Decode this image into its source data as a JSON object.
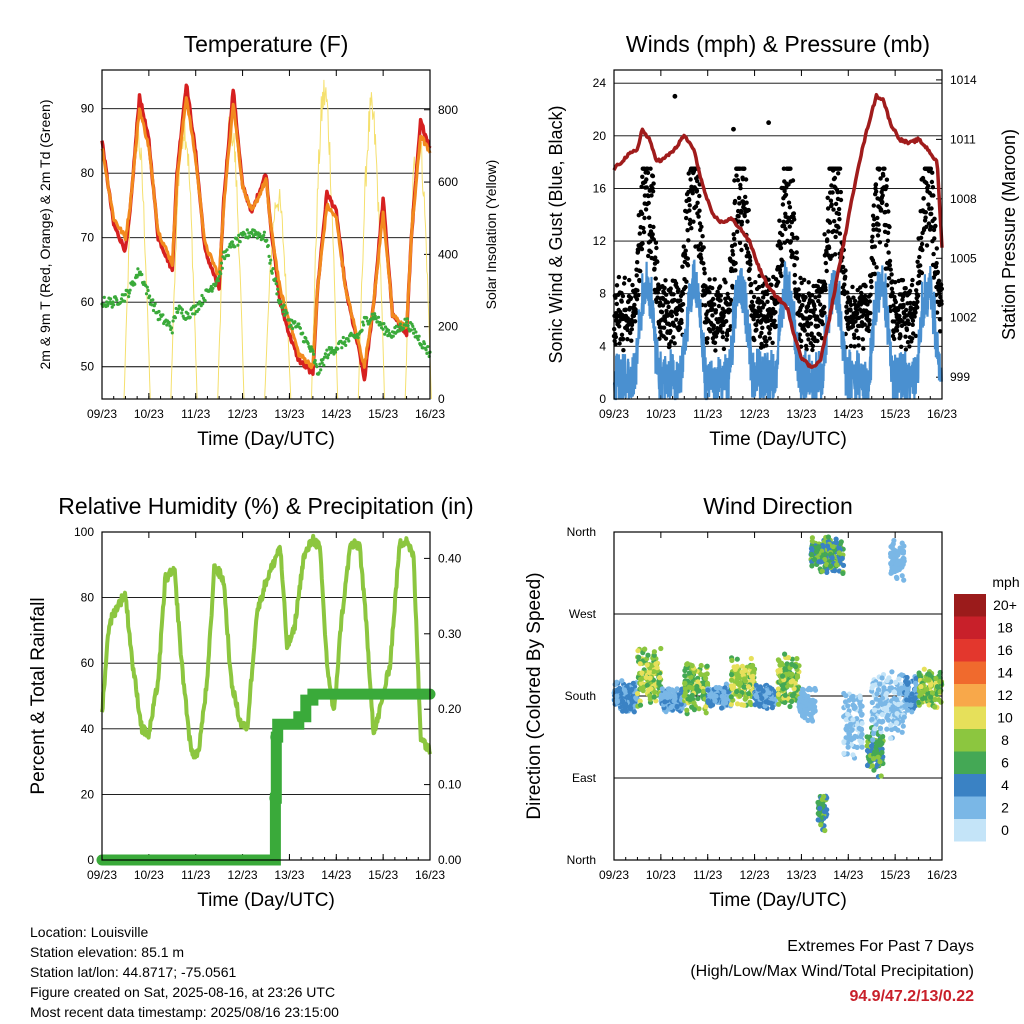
{
  "chart_data": [
    {
      "id": "temp",
      "type": "line",
      "title": "Temperature (F)",
      "xlabel": "Time (Day/UTC)",
      "ylabel": "2m & 9m T (Red, Orange) & 2m Td (Green)",
      "y2label": "Solar Insolation (Yellow)",
      "x_ticks": [
        "09/23",
        "10/23",
        "11/23",
        "12/23",
        "13/23",
        "14/23",
        "15/23",
        "16/23"
      ],
      "ylim": [
        45,
        96
      ],
      "y_ticks": [
        50,
        60,
        70,
        80,
        90
      ],
      "y2lim": [
        0,
        910
      ],
      "y2_ticks": [
        0,
        200,
        400,
        600,
        800
      ],
      "grid": true,
      "x_days": [
        0,
        0.25,
        0.5,
        0.6,
        0.8,
        1.0,
        1.2,
        1.5,
        1.6,
        1.8,
        2.0,
        2.2,
        2.5,
        2.6,
        2.8,
        3.0,
        3.2,
        3.5,
        3.6,
        3.8,
        4.0,
        4.2,
        4.5,
        4.6,
        4.8,
        5.0,
        5.2,
        5.5,
        5.6,
        5.8,
        6.0,
        6.2,
        6.5,
        6.6,
        6.8,
        7.0
      ],
      "series": [
        {
          "name": "2m T",
          "color": "#d62020",
          "values": [
            85,
            72,
            68,
            74,
            92,
            85,
            70,
            65,
            80,
            94,
            83,
            68,
            62,
            76,
            93,
            78,
            74,
            80,
            72,
            60,
            55,
            51,
            49,
            62,
            77,
            74,
            62,
            52,
            48,
            60,
            76,
            58,
            55,
            70,
            88,
            84
          ]
        },
        {
          "name": "9m T",
          "color": "#f28a1e",
          "values": [
            84,
            73,
            70,
            75,
            90,
            84,
            71,
            66,
            79,
            92,
            82,
            69,
            64,
            75,
            91,
            78,
            74,
            79,
            72,
            62,
            57,
            52,
            50,
            62,
            75,
            73,
            62,
            53,
            50,
            60,
            74,
            58,
            56,
            70,
            86,
            83
          ]
        },
        {
          "name": "2m Td",
          "color": "#3aaa3a",
          "values": [
            60,
            60,
            61,
            62,
            65,
            61,
            58,
            56,
            59,
            58,
            59,
            61,
            64,
            67,
            69,
            70,
            71,
            70,
            66,
            60,
            57,
            56,
            52,
            49,
            52,
            53,
            54,
            55,
            57,
            58,
            56,
            55,
            57,
            56,
            54,
            52
          ]
        }
      ],
      "insolation": {
        "name": "Solar Insolation",
        "color": "#f5e06e",
        "peaks": [
          {
            "day": 0.75,
            "v": 790
          },
          {
            "day": 1.75,
            "v": 820
          },
          {
            "day": 2.75,
            "v": 820
          },
          {
            "day": 3.75,
            "v": 600
          },
          {
            "day": 4.75,
            "v": 910
          },
          {
            "day": 5.75,
            "v": 850
          },
          {
            "day": 6.75,
            "v": 780
          }
        ]
      }
    },
    {
      "id": "winds",
      "type": "scatter",
      "title": "Winds (mph) & Pressure (mb)",
      "xlabel": "Time (Day/UTC)",
      "ylabel": "Sonic Wind & Gust (Blue, Black)",
      "y2label": "Station Pressure (Maroon)",
      "x_ticks": [
        "09/23",
        "10/23",
        "11/23",
        "12/23",
        "13/23",
        "14/23",
        "15/23",
        "16/23"
      ],
      "ylim": [
        0,
        25
      ],
      "y_ticks": [
        0,
        4,
        8,
        12,
        16,
        20,
        24
      ],
      "y2lim": [
        997.9,
        1014.5
      ],
      "y2_ticks": [
        999,
        1002,
        1005,
        1008,
        1011,
        1014
      ],
      "grid": true,
      "pressure": {
        "name": "Station Pressure",
        "color": "#a01c1c",
        "x_days": [
          0,
          0.3,
          0.5,
          0.6,
          0.75,
          0.9,
          1.0,
          1.3,
          1.5,
          1.7,
          1.9,
          2.1,
          2.3,
          2.5,
          2.7,
          2.9,
          3.1,
          3.3,
          3.5,
          3.7,
          3.8,
          4.0,
          4.2,
          4.4,
          4.6,
          4.8,
          5.0,
          5.2,
          5.4,
          5.6,
          5.75,
          5.9,
          6.1,
          6.3,
          6.5,
          6.7,
          6.9,
          7.0
        ],
        "values": [
          1009.5,
          1010.2,
          1010.5,
          1011.5,
          1011.0,
          1010.0,
          1009.9,
          1010.5,
          1011.2,
          1010.5,
          1008.6,
          1007.2,
          1006.8,
          1007.0,
          1006.5,
          1005.8,
          1004.5,
          1003.5,
          1003.0,
          1002.5,
          1001.5,
          1000.0,
          999.5,
          999.8,
          1002.0,
          1004.5,
          1007.0,
          1009.5,
          1011.5,
          1013.2,
          1013.0,
          1011.8,
          1011.0,
          1010.8,
          1011.0,
          1010.5,
          1009.8,
          1005.5
        ]
      },
      "gust_color": "#000000",
      "wind_color": "#4a90d0",
      "gust_outliers": [
        {
          "day": 1.3,
          "v": 23
        },
        {
          "day": 3.3,
          "v": 21
        },
        {
          "day": 2.55,
          "v": 20.5
        }
      ]
    },
    {
      "id": "rh",
      "type": "line",
      "title": "Relative Humidity (%) & Precipitation (in)",
      "xlabel": "Time (Day/UTC)",
      "ylabel": "Percent & Total Rainfall",
      "x_ticks": [
        "09/23",
        "10/23",
        "11/23",
        "12/23",
        "13/23",
        "14/23",
        "15/23",
        "16/23"
      ],
      "ylim": [
        0,
        100
      ],
      "y_ticks": [
        0,
        20,
        40,
        60,
        80,
        100
      ],
      "y2lim": [
        0,
        0.435
      ],
      "y2_ticks": [
        "0.00",
        "0.10",
        "0.20",
        "0.30",
        "0.40"
      ],
      "grid": true,
      "rh": {
        "name": "Relative Humidity",
        "color": "#8cc63f",
        "x_days": [
          0,
          0.15,
          0.35,
          0.5,
          0.65,
          0.85,
          1.0,
          1.2,
          1.35,
          1.55,
          1.7,
          1.9,
          2.05,
          2.25,
          2.4,
          2.6,
          2.75,
          2.95,
          3.1,
          3.3,
          3.5,
          3.65,
          3.8,
          3.95,
          4.1,
          4.3,
          4.5,
          4.65,
          4.8,
          4.95,
          5.1,
          5.3,
          5.5,
          5.65,
          5.8,
          6.0,
          6.15,
          6.35,
          6.5,
          6.65,
          6.8,
          7.0
        ],
        "values": [
          45,
          72,
          78,
          81,
          60,
          40,
          38,
          55,
          86,
          88,
          60,
          33,
          32,
          55,
          90,
          85,
          55,
          42,
          40,
          75,
          85,
          90,
          96,
          65,
          70,
          92,
          98,
          95,
          60,
          44,
          72,
          96,
          96,
          70,
          38,
          50,
          60,
          96,
          98,
          92,
          38,
          33
        ]
      },
      "precip": {
        "name": "Total Precipitation",
        "color": "#3aaa3a",
        "steps": [
          {
            "day": 0,
            "v": 0.0
          },
          {
            "day": 3.65,
            "v": 0.0
          },
          {
            "day": 3.7,
            "v": 0.082
          },
          {
            "day": 3.72,
            "v": 0.163
          },
          {
            "day": 3.75,
            "v": 0.18
          },
          {
            "day": 4.2,
            "v": 0.19
          },
          {
            "day": 4.35,
            "v": 0.212
          },
          {
            "day": 4.5,
            "v": 0.22
          },
          {
            "day": 7.0,
            "v": 0.22
          }
        ]
      }
    },
    {
      "id": "wdir",
      "type": "scatter",
      "title": "Wind Direction",
      "xlabel": "Time (Day/UTC)",
      "ylabel": "Direction (Colored By Speed)",
      "x_ticks": [
        "09/23",
        "10/23",
        "11/23",
        "12/23",
        "13/23",
        "14/23",
        "15/23",
        "16/23"
      ],
      "y_ticks": [
        "North",
        "East",
        "South",
        "West",
        "North"
      ],
      "grid": true,
      "legend": {
        "title": "mph",
        "labels": [
          "20+",
          "18",
          "16",
          "14",
          "12",
          "10",
          "8",
          "6",
          "4",
          "2",
          "0"
        ],
        "colors": [
          "#9b1b1b",
          "#c8202a",
          "#e3372d",
          "#f06a2d",
          "#f8a84a",
          "#e6e05a",
          "#8cc63f",
          "#44a855",
          "#3a82c4",
          "#7ab7e6",
          "#c4e4f8"
        ]
      },
      "clusters": [
        {
          "d0": 0.0,
          "d1": 0.5,
          "dir": 180,
          "spread": 18,
          "spd": [
            2,
            5
          ]
        },
        {
          "d0": 0.5,
          "d1": 1.0,
          "dir": 200,
          "spread": 35,
          "spd": [
            5,
            11
          ]
        },
        {
          "d0": 1.0,
          "d1": 1.5,
          "dir": 175,
          "spread": 15,
          "spd": [
            1,
            4
          ]
        },
        {
          "d0": 1.5,
          "d1": 2.0,
          "dir": 190,
          "spread": 30,
          "spd": [
            5,
            10
          ]
        },
        {
          "d0": 2.0,
          "d1": 2.5,
          "dir": 180,
          "spread": 15,
          "spd": [
            1,
            4
          ]
        },
        {
          "d0": 2.5,
          "d1": 3.0,
          "dir": 195,
          "spread": 30,
          "spd": [
            6,
            11
          ]
        },
        {
          "d0": 3.0,
          "d1": 3.5,
          "dir": 180,
          "spread": 15,
          "spd": [
            2,
            5
          ]
        },
        {
          "d0": 3.5,
          "d1": 3.95,
          "dir": 195,
          "spread": 35,
          "spd": [
            5,
            10
          ]
        },
        {
          "d0": 3.95,
          "d1": 4.3,
          "dir": 170,
          "spread": 20,
          "spd": [
            1,
            3
          ]
        },
        {
          "d0": 4.35,
          "d1": 4.55,
          "dir": 55,
          "spread": 25,
          "spd": [
            3,
            8
          ]
        },
        {
          "d0": 4.2,
          "d1": 4.9,
          "dir": 335,
          "spread": 22,
          "spd": [
            3,
            9
          ]
        },
        {
          "d0": 4.9,
          "d1": 5.3,
          "dir": 150,
          "spread": 40,
          "spd": [
            0,
            3
          ]
        },
        {
          "d0": 5.4,
          "d1": 5.75,
          "dir": 120,
          "spread": 30,
          "spd": [
            3,
            8
          ]
        },
        {
          "d0": 5.5,
          "d1": 6.2,
          "dir": 170,
          "spread": 40,
          "spd": [
            0,
            3
          ]
        },
        {
          "d0": 5.9,
          "d1": 6.2,
          "dir": 330,
          "spread": 25,
          "spd": [
            1,
            3
          ]
        },
        {
          "d0": 6.2,
          "d1": 6.5,
          "dir": 180,
          "spread": 25,
          "spd": [
            2,
            4
          ]
        },
        {
          "d0": 6.5,
          "d1": 7.0,
          "dir": 190,
          "spread": 25,
          "spd": [
            5,
            10
          ]
        }
      ]
    }
  ],
  "station_info": {
    "location": "Location: Louisville",
    "elevation": "Station elevation: 85.1 m",
    "latlon": "Station lat/lon: 44.8717; -75.0561",
    "created": "Figure created on Sat, 2025-08-16, at 23:26 UTC",
    "recent": "Most recent data timestamp: 2025/08/16 23:15:00"
  },
  "extremes": {
    "line1": "Extremes For Past 7 Days",
    "line2": "(High/Low/Max Wind/Total Precipitation)",
    "values": "94.9/47.2/13/0.22"
  }
}
